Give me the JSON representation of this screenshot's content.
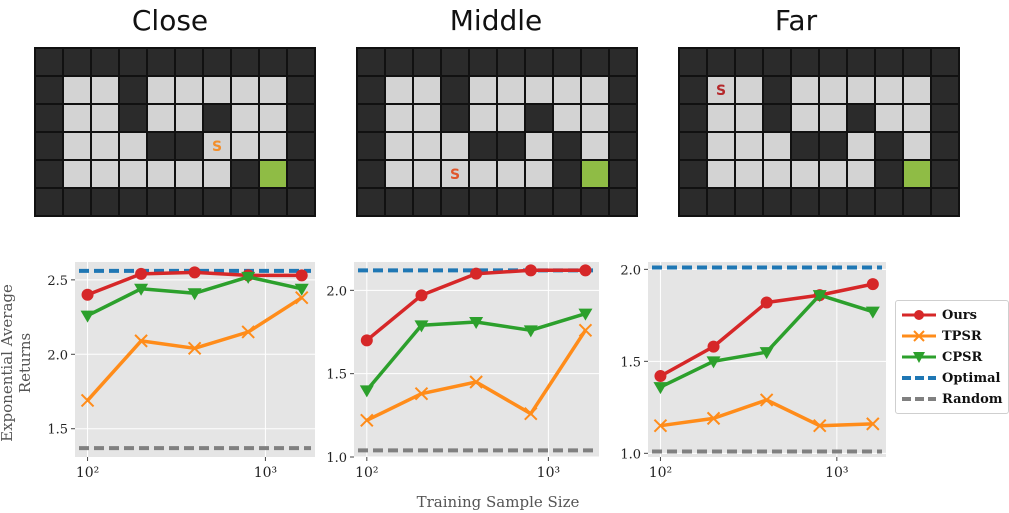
{
  "panels": [
    {
      "title": "Close",
      "start_label": "S",
      "start_color": "#f28e2b",
      "maze_rows": [
        "#########",
        "#..#.....#",
        "#..#..#..#",
        "#...##S..#",
        "#......#G#",
        "#########"
      ]
    },
    {
      "title": "Middle",
      "start_label": "S",
      "start_color": "#e0562b",
      "maze_rows": [
        "##########",
        "#..#.....#",
        "#..#..#..#",
        "#...##.#.#",
        "#..S...#G#",
        "##########"
      ]
    },
    {
      "title": "Far",
      "start_label": "S",
      "start_color": "#b5282b",
      "maze_rows": [
        "##########",
        "#S.#.....#",
        "#..#..#..#",
        "#...##.#.#",
        "#......#G#",
        "##########"
      ]
    }
  ],
  "colors": {
    "wall": "#2b2b2b",
    "floor": "#d3d3d3",
    "goal": "#8fbc45",
    "plot_bg": "#e5e5e5",
    "grid": "#ffffff",
    "ours": "#d62728",
    "tpsr": "#ff8c1a",
    "cpsr": "#2ca02c",
    "optimal": "#1f77b4",
    "random": "#808080"
  },
  "axis": {
    "ylabel": "Exponential Average Returns",
    "xlabel": "Training Sample Size"
  },
  "legend": {
    "items": [
      {
        "label": "Ours",
        "key": "ours",
        "style": "line-circle"
      },
      {
        "label": "TPSR",
        "key": "tpsr",
        "style": "line-x"
      },
      {
        "label": "CPSR",
        "key": "cpsr",
        "style": "line-triangle"
      },
      {
        "label": "Optimal",
        "key": "optimal",
        "style": "dashed"
      },
      {
        "label": "Random",
        "key": "random",
        "style": "dashed"
      }
    ]
  },
  "chart_data": [
    {
      "type": "line",
      "title": "Close",
      "x_scale": "log",
      "x": [
        100,
        200,
        400,
        800,
        1600
      ],
      "xticks": [
        {
          "value": 100,
          "label": "10²"
        },
        {
          "value": 1000,
          "label": "10³"
        }
      ],
      "xlim": [
        85,
        1900
      ],
      "ylim": [
        1.31,
        2.62
      ],
      "yticks": [
        {
          "value": 1.5,
          "label": "1.5"
        },
        {
          "value": 2.0,
          "label": "2.0"
        },
        {
          "value": 2.5,
          "label": "2.5"
        }
      ],
      "series": [
        {
          "name": "Ours",
          "key": "ours",
          "marker": "circle",
          "values": [
            2.4,
            2.54,
            2.55,
            2.53,
            2.53
          ]
        },
        {
          "name": "TPSR",
          "key": "tpsr",
          "marker": "x",
          "values": [
            1.69,
            2.09,
            2.04,
            2.15,
            2.38
          ]
        },
        {
          "name": "CPSR",
          "key": "cpsr",
          "marker": "triangle",
          "values": [
            2.26,
            2.44,
            2.41,
            2.52,
            2.44
          ]
        }
      ],
      "baselines": [
        {
          "name": "Optimal",
          "key": "optimal",
          "value": 2.56
        },
        {
          "name": "Random",
          "key": "random",
          "value": 1.37
        }
      ]
    },
    {
      "type": "line",
      "title": "Middle",
      "x_scale": "log",
      "x": [
        100,
        200,
        400,
        800,
        1600
      ],
      "xticks": [
        {
          "value": 100,
          "label": "10²"
        },
        {
          "value": 1000,
          "label": "10³"
        }
      ],
      "xlim": [
        85,
        1900
      ],
      "ylim": [
        1.0,
        2.17
      ],
      "yticks": [
        {
          "value": 1.0,
          "label": "1.0"
        },
        {
          "value": 1.5,
          "label": "1.5"
        },
        {
          "value": 2.0,
          "label": "2.0"
        }
      ],
      "series": [
        {
          "name": "Ours",
          "key": "ours",
          "marker": "circle",
          "values": [
            1.7,
            1.97,
            2.1,
            2.12,
            2.12
          ]
        },
        {
          "name": "TPSR",
          "key": "tpsr",
          "marker": "x",
          "values": [
            1.22,
            1.38,
            1.45,
            1.26,
            1.76
          ]
        },
        {
          "name": "CPSR",
          "key": "cpsr",
          "marker": "triangle",
          "values": [
            1.4,
            1.79,
            1.81,
            1.76,
            1.86
          ]
        }
      ],
      "baselines": [
        {
          "name": "Optimal",
          "key": "optimal",
          "value": 2.12
        },
        {
          "name": "Random",
          "key": "random",
          "value": 1.04
        }
      ]
    },
    {
      "type": "line",
      "title": "Far",
      "x_scale": "log",
      "x": [
        100,
        200,
        400,
        800,
        1600
      ],
      "xticks": [
        {
          "value": 100,
          "label": "10²"
        },
        {
          "value": 1000,
          "label": "10³"
        }
      ],
      "xlim": [
        85,
        1900
      ],
      "ylim": [
        0.98,
        2.04
      ],
      "yticks": [
        {
          "value": 1.0,
          "label": "1.0"
        },
        {
          "value": 1.5,
          "label": "1.5"
        },
        {
          "value": 2.0,
          "label": "2.0"
        }
      ],
      "series": [
        {
          "name": "Ours",
          "key": "ours",
          "marker": "circle",
          "values": [
            1.42,
            1.58,
            1.82,
            1.86,
            1.92
          ]
        },
        {
          "name": "TPSR",
          "key": "tpsr",
          "marker": "x",
          "values": [
            1.15,
            1.19,
            1.29,
            1.15,
            1.16
          ]
        },
        {
          "name": "CPSR",
          "key": "cpsr",
          "marker": "triangle",
          "values": [
            1.36,
            1.5,
            1.55,
            1.86,
            1.77
          ]
        }
      ],
      "baselines": [
        {
          "name": "Optimal",
          "key": "optimal",
          "value": 2.01
        },
        {
          "name": "Random",
          "key": "random",
          "value": 1.01
        }
      ]
    }
  ]
}
